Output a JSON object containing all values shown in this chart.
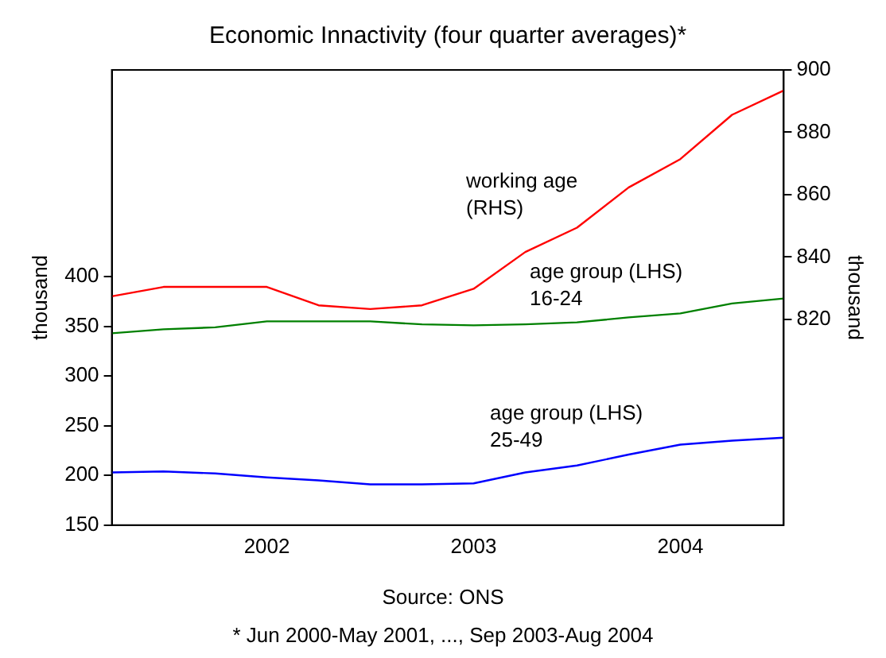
{
  "chart_data": {
    "type": "line",
    "title": "Economic Innactivity (four quarter averages)*",
    "ylabel": "thousand",
    "y2label": "thousand",
    "categories": [
      null,
      null,
      null,
      "2002",
      null,
      null,
      null,
      "2003",
      null,
      null,
      null,
      "2004",
      null,
      null
    ],
    "series": [
      {
        "name": "working age (RHS)",
        "color": "#ff0000",
        "axis": "y2",
        "values": [
          827.4,
          830.4,
          830.4,
          830.4,
          824.5,
          823.3,
          824.5,
          829.8,
          841.6,
          849.4,
          862.3,
          871.4,
          885.6,
          893.4
        ]
      },
      {
        "name": "age group (LHS) 16-24",
        "color": "#008000",
        "values": [
          343,
          347,
          349,
          355,
          355,
          355,
          352,
          351,
          352,
          354,
          359,
          363,
          373,
          378
        ]
      },
      {
        "name": "age group (LHS) 25-49",
        "color": "#0000ff",
        "values": [
          203,
          204,
          202,
          198,
          195,
          191,
          191,
          192,
          203,
          210,
          221,
          231,
          235,
          238
        ]
      }
    ],
    "ylim": [
      150,
      608
    ],
    "yticks": [
      150,
      200,
      250,
      300,
      350,
      400
    ],
    "y2lim": [
      754,
      900
    ],
    "y2ticks": [
      820,
      840,
      860,
      880,
      900
    ],
    "grid": false,
    "legend": false,
    "marker": "none",
    "line_style": "solid",
    "annotations": [
      "Source: ONS",
      "* Jun 2000-May 2001, ..., Sep 2003-Aug 2004"
    ]
  }
}
